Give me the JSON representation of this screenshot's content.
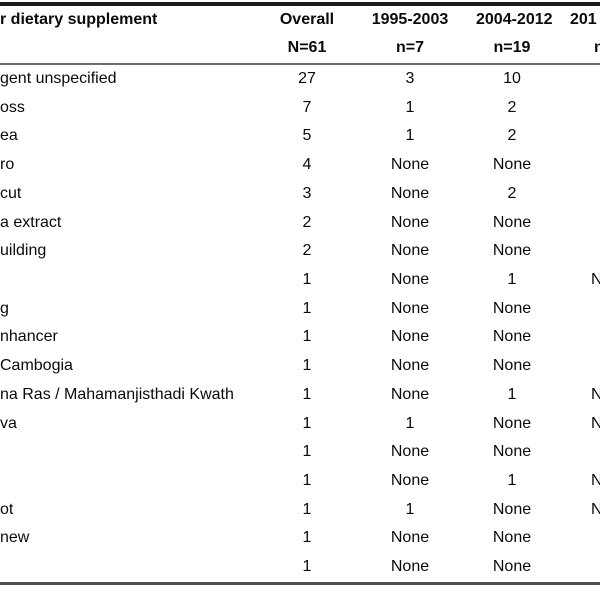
{
  "page": {
    "background_color": "#ffffff",
    "text_color": "#0a0a0a",
    "top_rule_color": "#1a1a1a",
    "header_rule_color": "#6f6f6f",
    "bottom_rule_color": "#4f4f4f",
    "note": "Table cropped at left and right edges; label column and last period column are partially visible"
  },
  "table": {
    "header": {
      "label_line1": "r dietary supplement",
      "label_line2": "",
      "cols": [
        {
          "line1": "Overall",
          "line2": "N=61",
          "truncated": false
        },
        {
          "line1": "1995-2003",
          "line2": "n=7",
          "truncated": false
        },
        {
          "line1": "2004-2012",
          "line2": "n=19",
          "truncated": false
        },
        {
          "line1": "201",
          "line2": "n",
          "truncated": true
        }
      ]
    },
    "rows": [
      {
        "label": "gent unspecified",
        "overall": "27",
        "p1": "3",
        "p2": "10",
        "p3": ""
      },
      {
        "label": "oss",
        "overall": "7",
        "p1": "1",
        "p2": "2",
        "p3": ""
      },
      {
        "label": "ea",
        "overall": "5",
        "p1": "1",
        "p2": "2",
        "p3": ""
      },
      {
        "label": "ro",
        "overall": "4",
        "p1": "None",
        "p2": "None",
        "p3": ""
      },
      {
        "label": "cut",
        "overall": "3",
        "p1": "None",
        "p2": "2",
        "p3": ""
      },
      {
        "label": "a extract",
        "overall": "2",
        "p1": "None",
        "p2": "None",
        "p3": ""
      },
      {
        "label": "uilding",
        "overall": "2",
        "p1": "None",
        "p2": "None",
        "p3": ""
      },
      {
        "label": "",
        "overall": "1",
        "p1": "None",
        "p2": "1",
        "p3": "N"
      },
      {
        "label": "g",
        "overall": "1",
        "p1": "None",
        "p2": "None",
        "p3": ""
      },
      {
        "label": "nhancer",
        "overall": "1",
        "p1": "None",
        "p2": "None",
        "p3": ""
      },
      {
        "label": " Cambogia",
        "overall": "1",
        "p1": "None",
        "p2": "None",
        "p3": ""
      },
      {
        "label": "na Ras / Mahamanjisthadi Kwath",
        "overall": "1",
        "p1": "None",
        "p2": "1",
        "p3": "N"
      },
      {
        "label": "va",
        "overall": "1",
        "p1": "1",
        "p2": "None",
        "p3": "N"
      },
      {
        "label": "",
        "overall": "1",
        "p1": "None",
        "p2": "None",
        "p3": ""
      },
      {
        "label": "",
        "overall": "1",
        "p1": "None",
        "p2": "1",
        "p3": "N"
      },
      {
        "label": "ot",
        "overall": "1",
        "p1": "1",
        "p2": "None",
        "p3": "N"
      },
      {
        "label": "new",
        "overall": "1",
        "p1": "None",
        "p2": "None",
        "p3": ""
      },
      {
        "label": "",
        "overall": "1",
        "p1": "None",
        "p2": "None",
        "p3": ""
      }
    ]
  }
}
